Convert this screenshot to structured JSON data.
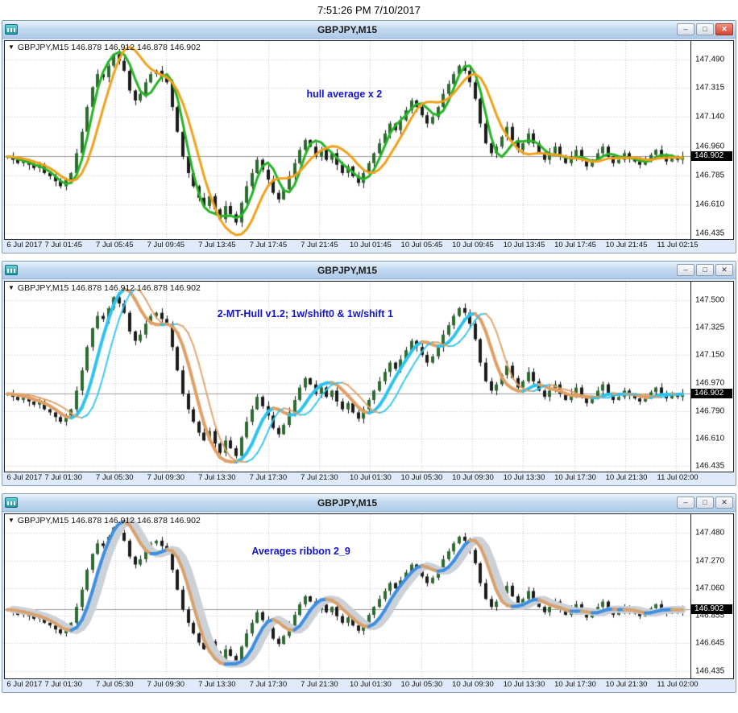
{
  "clock": "7:51:26 PM 7/10/2017",
  "window_controls": {
    "minimize": "–",
    "maximize": "□",
    "close": "✕"
  },
  "windows": [
    {
      "title": "GBPJPY,M15",
      "symbol_header": "GBPJPY,M15 146.878 146.912 146.878 146.902"
    },
    {
      "title": "GBPJPY,M15",
      "symbol_header": "GBPJPY,M15 146.878 146.912 146.878 146.902"
    },
    {
      "title": "GBPJPY,M15",
      "symbol_header": "GBPJPY,M15 146.878 146.912 146.878 146.902"
    }
  ],
  "chart_data": {
    "type": "candlestick",
    "symbol": "GBPJPY",
    "timeframe": "M15",
    "last_quote": {
      "open": "146.878",
      "high": "146.912",
      "low": "146.878",
      "close": "146.902"
    },
    "price_line": 146.902,
    "first_open": 146.9,
    "closes": [
      146.9,
      146.88,
      146.86,
      146.88,
      146.85,
      146.83,
      146.85,
      146.8,
      146.78,
      146.75,
      146.72,
      146.76,
      146.8,
      146.92,
      147.05,
      147.2,
      147.32,
      147.4,
      147.38,
      147.45,
      147.52,
      147.48,
      147.42,
      147.3,
      147.24,
      147.28,
      147.35,
      147.4,
      147.42,
      147.38,
      147.35,
      147.2,
      147.05,
      146.9,
      146.8,
      146.72,
      146.65,
      146.6,
      146.66,
      146.58,
      146.52,
      146.6,
      146.55,
      146.5,
      146.62,
      146.72,
      146.8,
      146.88,
      146.82,
      146.76,
      146.68,
      146.64,
      146.7,
      146.78,
      146.86,
      146.94,
      147.0,
      146.96,
      146.9,
      146.94,
      146.88,
      146.92,
      146.85,
      146.8,
      146.84,
      146.78,
      146.74,
      146.8,
      146.86,
      146.92,
      146.98,
      147.04,
      147.1,
      147.06,
      147.12,
      147.18,
      147.24,
      147.2,
      147.15,
      147.1,
      147.14,
      147.2,
      147.28,
      147.34,
      147.4,
      147.45,
      147.42,
      147.35,
      147.25,
      147.1,
      146.98,
      146.92,
      146.96,
      147.02,
      147.08,
      147.0,
      146.94,
      146.98,
      147.04,
      146.98,
      146.92,
      146.88,
      146.92,
      146.96,
      146.9,
      146.86,
      146.9,
      146.94,
      146.88,
      146.84,
      146.88,
      146.92,
      146.96,
      146.9,
      146.86,
      146.88,
      146.92,
      146.89,
      146.87,
      146.85,
      146.88,
      146.91,
      146.94,
      146.9,
      146.87,
      146.9,
      146.88,
      146.902
    ],
    "charts": [
      {
        "annotation": "hull average x 2",
        "ymin": 146.4,
        "ymax": 147.6,
        "y_ticks": [
          "147.490",
          "147.315",
          "147.140",
          "146.960",
          "146.785",
          "146.610",
          "146.435"
        ],
        "x_ticks": [
          "6 Jul 2017",
          "7 Jul 01:45",
          "7 Jul 05:45",
          "7 Jul 09:45",
          "7 Jul 13:45",
          "7 Jul 17:45",
          "7 Jul 21:45",
          "10 Jul 01:45",
          "10 Jul 05:45",
          "10 Jul 09:45",
          "10 Jul 13:45",
          "10 Jul 17:45",
          "10 Jul 21:45",
          "11 Jul 02:15"
        ],
        "overlays": [
          {
            "kind": "hull",
            "period": 9,
            "color": "#27b327",
            "width": 3
          },
          {
            "kind": "hull",
            "period": 19,
            "color": "#f0a11c",
            "width": 3
          }
        ]
      },
      {
        "annotation": "2-MT-Hull v1.2;  1w/shift0 & 1w/shift 1",
        "ymin": 146.4,
        "ymax": 147.62,
        "y_ticks": [
          "147.500",
          "147.325",
          "147.150",
          "146.970",
          "146.790",
          "146.610",
          "146.435"
        ],
        "x_ticks": [
          "6 Jul 2017",
          "7 Jul 01:30",
          "7 Jul 05:30",
          "7 Jul 09:30",
          "7 Jul 13:30",
          "7 Jul 17:30",
          "7 Jul 21:30",
          "10 Jul 01:30",
          "10 Jul 05:30",
          "10 Jul 09:30",
          "10 Jul 13:30",
          "10 Jul 17:30",
          "10 Jul 21:30",
          "11 Jul 02:00"
        ],
        "overlays": [
          {
            "kind": "slope_shift",
            "period": 15,
            "up": "#2ec3ef",
            "down": "#e0a066",
            "width": 4,
            "shift": 2
          }
        ]
      },
      {
        "annotation": "Averages ribbon 2_9",
        "ymin": 146.38,
        "ymax": 147.62,
        "y_ticks": [
          "147.480",
          "147.270",
          "147.060",
          "146.855",
          "146.645",
          "146.435"
        ],
        "x_ticks": [
          "6 Jul 2017",
          "7 Jul 01:30",
          "7 Jul 05:30",
          "7 Jul 09:30",
          "7 Jul 13:30",
          "7 Jul 17:30",
          "7 Jul 21:30",
          "10 Jul 01:30",
          "10 Jul 05:30",
          "10 Jul 09:30",
          "10 Jul 13:30",
          "10 Jul 17:30",
          "10 Jul 21:30",
          "11 Jul 02:00"
        ],
        "overlays": [
          {
            "kind": "ribbon",
            "period": 13,
            "up": "#3e8fdf",
            "down": "#d8a26e",
            "band": "#ccd1d8",
            "width": 4
          }
        ]
      }
    ]
  }
}
